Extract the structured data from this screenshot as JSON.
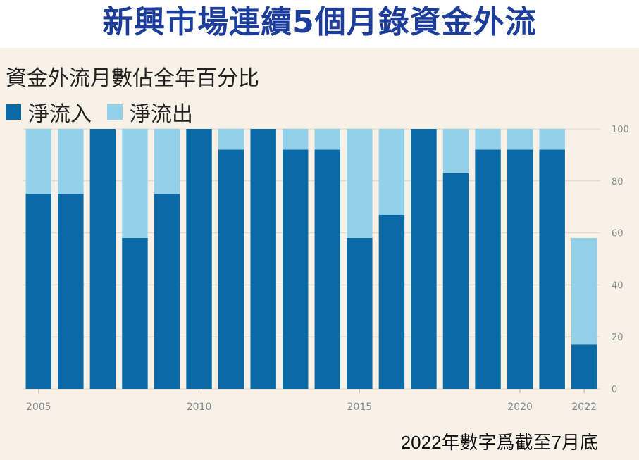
{
  "headline": "新興市場連續5個月錄資金外流",
  "footnote": "2022年數字爲截至7月底",
  "colors": {
    "inflow": "#0a6aa6",
    "outflow": "#93d1ea",
    "grid": "#ddd6cc",
    "axis_text": "#8a8a8a",
    "headline": "#1d3d9b",
    "panel_bg": "#f8f1e7"
  },
  "chart_data": {
    "type": "bar",
    "stacked": true,
    "title": "資金外流月數佔全年百分比",
    "categories": [
      "2005",
      "2006",
      "2007",
      "2008",
      "2009",
      "2010",
      "2011",
      "2012",
      "2013",
      "2014",
      "2015",
      "2016",
      "2017",
      "2018",
      "2019",
      "2020",
      "2021",
      "2022"
    ],
    "series": [
      {
        "name": "淨流入",
        "values": [
          75,
          75,
          100,
          58,
          75,
          100,
          92,
          100,
          92,
          92,
          58,
          67,
          100,
          83,
          92,
          92,
          92,
          17
        ]
      },
      {
        "name": "淨流出",
        "values": [
          25,
          25,
          0,
          42,
          25,
          0,
          8,
          0,
          8,
          8,
          42,
          33,
          0,
          17,
          8,
          8,
          8,
          41
        ]
      }
    ],
    "ylim": [
      0,
      100
    ],
    "yticks": [
      "0",
      "20",
      "40",
      "60",
      "80",
      "100"
    ],
    "xtick_labels": [
      "2005",
      "2010",
      "2015",
      "2020",
      "2022"
    ],
    "y_axis_position": "right",
    "grid": true,
    "legend_position": "top-left"
  }
}
